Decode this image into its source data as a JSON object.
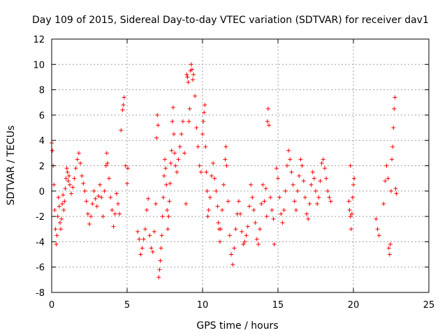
{
  "chart_data": {
    "type": "scatter",
    "title": "Day 109 of 2015, Sidereal Day-to-day VTEC variation (SDTVAR) for receiver dav1",
    "xlabel": "GPS time / hours",
    "ylabel": "SDTVAR / TECUs",
    "xlim": [
      0,
      25
    ],
    "ylim": [
      -8,
      12
    ],
    "xticks": [
      0,
      5,
      10,
      15,
      20,
      25
    ],
    "yticks": [
      -8,
      -6,
      -4,
      -2,
      0,
      2,
      4,
      6,
      8,
      10,
      12
    ],
    "xtick_labels": [
      "0",
      "5",
      "10",
      "15",
      "20",
      "25"
    ],
    "ytick_labels": [
      "-8",
      "-6",
      "-4",
      "-2",
      "0",
      "2",
      "4",
      "6",
      "8",
      "10",
      "12"
    ],
    "grid": true,
    "marker": "+",
    "color": "#ff0000",
    "series": [
      {
        "name": "SDTVAR",
        "points": [
          [
            0.0,
            3.8
          ],
          [
            0.05,
            3.2
          ],
          [
            0.1,
            2.0
          ],
          [
            0.15,
            0.5
          ],
          [
            0.2,
            -1.5
          ],
          [
            0.25,
            -3.0
          ],
          [
            0.3,
            -4.2
          ],
          [
            0.35,
            -3.5
          ],
          [
            0.4,
            -2.0
          ],
          [
            0.45,
            -0.5
          ],
          [
            0.5,
            -1.2
          ],
          [
            0.55,
            -2.5
          ],
          [
            0.6,
            -3.0
          ],
          [
            0.65,
            -2.2
          ],
          [
            0.7,
            -1.0
          ],
          [
            0.75,
            -0.3
          ],
          [
            0.8,
            -1.5
          ],
          [
            0.85,
            -0.8
          ],
          [
            0.9,
            0.2
          ],
          [
            0.95,
            1.0
          ],
          [
            1.0,
            1.8
          ],
          [
            1.05,
            1.5
          ],
          [
            1.1,
            0.8
          ],
          [
            1.15,
            1.2
          ],
          [
            1.2,
            0.5
          ],
          [
            1.3,
            -0.2
          ],
          [
            1.4,
            0.3
          ],
          [
            1.5,
            1.0
          ],
          [
            1.6,
            1.8
          ],
          [
            1.7,
            2.5
          ],
          [
            1.8,
            3.0
          ],
          [
            1.9,
            2.2
          ],
          [
            2.0,
            1.2
          ],
          [
            2.1,
            0.6
          ],
          [
            2.2,
            0.0
          ],
          [
            2.3,
            -0.8
          ],
          [
            2.4,
            -1.8
          ],
          [
            2.5,
            -2.6
          ],
          [
            2.6,
            -2.0
          ],
          [
            2.7,
            -1.0
          ],
          [
            2.8,
            0.0
          ],
          [
            2.9,
            -0.6
          ],
          [
            3.0,
            -1.2
          ],
          [
            3.1,
            -0.4
          ],
          [
            3.2,
            0.5
          ],
          [
            3.3,
            -0.5
          ],
          [
            3.4,
            -2.0
          ],
          [
            3.5,
            0.0
          ],
          [
            3.6,
            2.0
          ],
          [
            3.65,
            3.0
          ],
          [
            3.7,
            2.2
          ],
          [
            3.8,
            1.0
          ],
          [
            3.9,
            -0.5
          ],
          [
            4.0,
            -1.5
          ],
          [
            4.1,
            -2.8
          ],
          [
            4.2,
            -1.8
          ],
          [
            4.3,
            -0.2
          ],
          [
            4.4,
            -1.0
          ],
          [
            4.5,
            -1.8
          ],
          [
            4.6,
            4.8
          ],
          [
            4.7,
            6.4
          ],
          [
            4.75,
            6.8
          ],
          [
            4.8,
            7.4
          ],
          [
            4.9,
            2.0
          ],
          [
            5.0,
            0.6
          ],
          [
            5.05,
            1.8
          ],
          [
            5.7,
            -3.2
          ],
          [
            5.8,
            -3.8
          ],
          [
            5.9,
            -5.0
          ],
          [
            6.0,
            -4.5
          ],
          [
            6.1,
            -3.8
          ],
          [
            6.2,
            -3.0
          ],
          [
            6.3,
            -1.5
          ],
          [
            6.4,
            -0.6
          ],
          [
            6.5,
            -3.5
          ],
          [
            6.6,
            -4.5
          ],
          [
            6.7,
            -4.8
          ],
          [
            6.8,
            -3.2
          ],
          [
            6.9,
            -1.0
          ],
          [
            6.95,
            4.2
          ],
          [
            7.0,
            6.0
          ],
          [
            7.05,
            5.2
          ],
          [
            7.1,
            -6.8
          ],
          [
            7.15,
            -6.2
          ],
          [
            7.2,
            -5.5
          ],
          [
            7.25,
            -4.5
          ],
          [
            7.3,
            -3.5
          ],
          [
            7.35,
            -2.0
          ],
          [
            7.4,
            -0.5
          ],
          [
            7.45,
            1.2
          ],
          [
            7.5,
            2.5
          ],
          [
            7.55,
            1.8
          ],
          [
            7.6,
            0.5
          ],
          [
            7.65,
            -1.5
          ],
          [
            7.7,
            -3.0
          ],
          [
            7.75,
            -2.0
          ],
          [
            7.8,
            -0.8
          ],
          [
            7.85,
            0.6
          ],
          [
            7.9,
            2.2
          ],
          [
            7.95,
            3.2
          ],
          [
            8.0,
            5.5
          ],
          [
            8.05,
            6.6
          ],
          [
            8.1,
            4.5
          ],
          [
            8.15,
            3.0
          ],
          [
            8.2,
            2.0
          ],
          [
            8.3,
            1.5
          ],
          [
            8.4,
            2.5
          ],
          [
            8.5,
            3.5
          ],
          [
            8.6,
            4.5
          ],
          [
            8.7,
            5.5
          ],
          [
            8.8,
            3.0
          ],
          [
            8.9,
            -1.0
          ],
          [
            8.95,
            9.2
          ],
          [
            9.0,
            9.0
          ],
          [
            9.05,
            8.6
          ],
          [
            9.1,
            5.5
          ],
          [
            9.15,
            6.5
          ],
          [
            9.2,
            9.5
          ],
          [
            9.25,
            10.0
          ],
          [
            9.3,
            9.6
          ],
          [
            9.35,
            8.8
          ],
          [
            9.4,
            9.2
          ],
          [
            9.5,
            7.5
          ],
          [
            9.6,
            5.0
          ],
          [
            9.7,
            3.5
          ],
          [
            9.8,
            2.0
          ],
          [
            9.9,
            1.5
          ],
          [
            10.0,
            4.5
          ],
          [
            10.05,
            5.5
          ],
          [
            10.1,
            6.2
          ],
          [
            10.15,
            6.8
          ],
          [
            10.2,
            3.5
          ],
          [
            10.25,
            1.5
          ],
          [
            10.3,
            0.0
          ],
          [
            10.35,
            -2.0
          ],
          [
            10.4,
            -1.5
          ],
          [
            10.5,
            -0.5
          ],
          [
            10.6,
            1.2
          ],
          [
            10.7,
            2.2
          ],
          [
            10.8,
            1.0
          ],
          [
            10.9,
            0.0
          ],
          [
            11.0,
            -1.2
          ],
          [
            11.05,
            -2.5
          ],
          [
            11.1,
            -3.0
          ],
          [
            11.15,
            -4.0
          ],
          [
            11.2,
            -3.0
          ],
          [
            11.3,
            -1.5
          ],
          [
            11.4,
            0.5
          ],
          [
            11.5,
            2.5
          ],
          [
            11.55,
            3.5
          ],
          [
            11.6,
            2.0
          ],
          [
            11.7,
            -0.8
          ],
          [
            11.8,
            -3.5
          ],
          [
            11.9,
            -5.0
          ],
          [
            12.0,
            -5.8
          ],
          [
            12.1,
            -4.5
          ],
          [
            12.2,
            -3.0
          ],
          [
            12.3,
            -1.8
          ],
          [
            12.4,
            -0.8
          ],
          [
            12.5,
            -1.8
          ],
          [
            12.6,
            -3.2
          ],
          [
            12.7,
            -4.2
          ],
          [
            12.8,
            -4.0
          ],
          [
            12.9,
            -3.5
          ],
          [
            13.0,
            -2.8
          ],
          [
            13.1,
            -1.2
          ],
          [
            13.2,
            0.5
          ],
          [
            13.3,
            -0.5
          ],
          [
            13.4,
            -1.5
          ],
          [
            13.5,
            -2.5
          ],
          [
            13.6,
            -3.8
          ],
          [
            13.7,
            -4.2
          ],
          [
            13.8,
            -3.0
          ],
          [
            13.9,
            -1.0
          ],
          [
            14.0,
            0.5
          ],
          [
            14.1,
            -0.8
          ],
          [
            14.2,
            0.2
          ],
          [
            14.25,
            -2.0
          ],
          [
            14.3,
            5.5
          ],
          [
            14.35,
            6.5
          ],
          [
            14.4,
            5.2
          ],
          [
            14.5,
            -0.5
          ],
          [
            14.6,
            -1.5
          ],
          [
            14.7,
            -2.2
          ],
          [
            14.75,
            -4.2
          ],
          [
            14.9,
            1.8
          ],
          [
            15.0,
            1.0
          ],
          [
            15.1,
            -0.5
          ],
          [
            15.2,
            -1.8
          ],
          [
            15.3,
            -2.5
          ],
          [
            15.4,
            -1.5
          ],
          [
            15.5,
            0.0
          ],
          [
            15.6,
            2.0
          ],
          [
            15.7,
            3.2
          ],
          [
            15.8,
            2.5
          ],
          [
            15.9,
            1.5
          ],
          [
            16.0,
            0.5
          ],
          [
            16.1,
            -0.8
          ],
          [
            16.2,
            -1.5
          ],
          [
            16.3,
            0.0
          ],
          [
            16.4,
            1.2
          ],
          [
            16.5,
            2.5
          ],
          [
            16.6,
            2.0
          ],
          [
            16.7,
            0.8
          ],
          [
            16.8,
            -0.5
          ],
          [
            16.9,
            -1.8
          ],
          [
            17.0,
            -2.2
          ],
          [
            17.1,
            -1.0
          ],
          [
            17.2,
            0.5
          ],
          [
            17.3,
            1.5
          ],
          [
            17.4,
            1.0
          ],
          [
            17.5,
            0.0
          ],
          [
            17.6,
            -1.0
          ],
          [
            17.7,
            -0.5
          ],
          [
            17.8,
            0.8
          ],
          [
            17.9,
            2.2
          ],
          [
            18.0,
            2.5
          ],
          [
            18.1,
            1.8
          ],
          [
            18.2,
            1.0
          ],
          [
            18.3,
            0.0
          ],
          [
            18.4,
            -0.5
          ],
          [
            18.5,
            -0.8
          ],
          [
            19.7,
            -0.8
          ],
          [
            19.75,
            -1.5
          ],
          [
            19.8,
            -2.0
          ],
          [
            19.85,
            -3.0
          ],
          [
            19.9,
            -1.8
          ],
          [
            19.95,
            -0.5
          ],
          [
            20.0,
            0.5
          ],
          [
            20.05,
            1.0
          ],
          [
            19.8,
            2.0
          ],
          [
            21.5,
            -2.2
          ],
          [
            21.6,
            -3.0
          ],
          [
            21.7,
            -3.5
          ],
          [
            22.0,
            -1.0
          ],
          [
            22.1,
            0.8
          ],
          [
            22.2,
            2.0
          ],
          [
            22.3,
            1.0
          ],
          [
            22.35,
            -4.5
          ],
          [
            22.4,
            -5.0
          ],
          [
            22.45,
            -4.2
          ],
          [
            22.5,
            0.0
          ],
          [
            22.55,
            2.5
          ],
          [
            22.6,
            3.5
          ],
          [
            22.65,
            5.0
          ],
          [
            22.7,
            6.5
          ],
          [
            22.75,
            7.4
          ],
          [
            22.8,
            0.2
          ],
          [
            22.85,
            -0.2
          ]
        ]
      }
    ]
  }
}
